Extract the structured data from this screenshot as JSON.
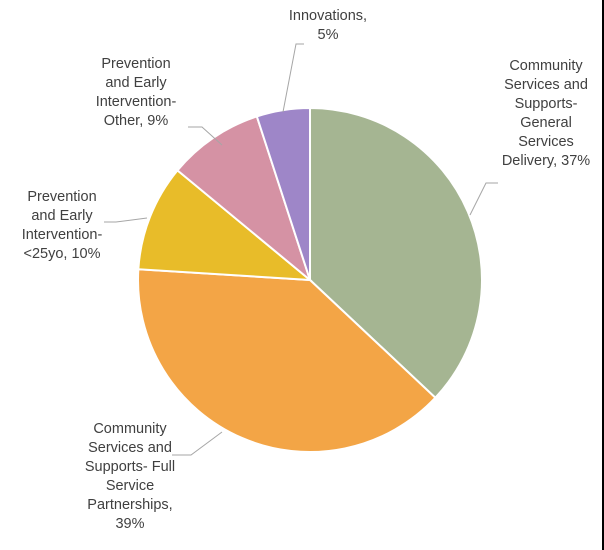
{
  "chart_data": {
    "type": "pie",
    "title": "",
    "start_angle_deg": 0,
    "direction": "clockwise",
    "slices": [
      {
        "label_lines": [
          "Community",
          "Services and",
          "Supports-",
          "General",
          "Services",
          "Delivery, 37%"
        ],
        "value": 37,
        "color": "#a5b592"
      },
      {
        "label_lines": [
          "Community",
          "Services and",
          "Supports- Full",
          "Service",
          "Partnerships,",
          "39%"
        ],
        "value": 39,
        "color": "#f3a546"
      },
      {
        "label_lines": [
          "Prevention",
          "and Early",
          "Intervention-",
          "<25yo, 10%"
        ],
        "value": 10,
        "color": "#e8bc29"
      },
      {
        "label_lines": [
          "Prevention",
          "and Early",
          "Intervention-",
          "Other, 9%"
        ],
        "value": 9,
        "color": "#d592a4"
      },
      {
        "label_lines": [
          "Innovations,",
          "5%"
        ],
        "value": 5,
        "color": "#9e86c8"
      }
    ]
  }
}
